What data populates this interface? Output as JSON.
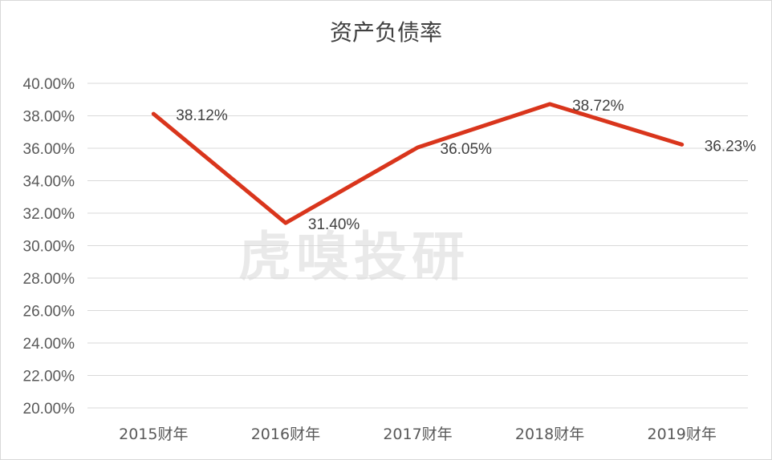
{
  "chart_data": {
    "type": "line",
    "title": "资产负债率",
    "categories": [
      "2015财年",
      "2016财年",
      "2017财年",
      "2018财年",
      "2019财年"
    ],
    "series": [
      {
        "values": [
          38.12,
          31.4,
          36.05,
          38.72,
          36.23
        ],
        "color": "#d9351c"
      }
    ],
    "data_labels": [
      "38.12%",
      "31.40%",
      "36.05%",
      "38.72%",
      "36.23%"
    ],
    "ylim": [
      20,
      40
    ],
    "yticks": [
      "20.00%",
      "22.00%",
      "24.00%",
      "26.00%",
      "28.00%",
      "30.00%",
      "32.00%",
      "34.00%",
      "36.00%",
      "38.00%",
      "40.00%"
    ],
    "grid": true,
    "legend": "none"
  },
  "watermark": "虎嗅投研"
}
